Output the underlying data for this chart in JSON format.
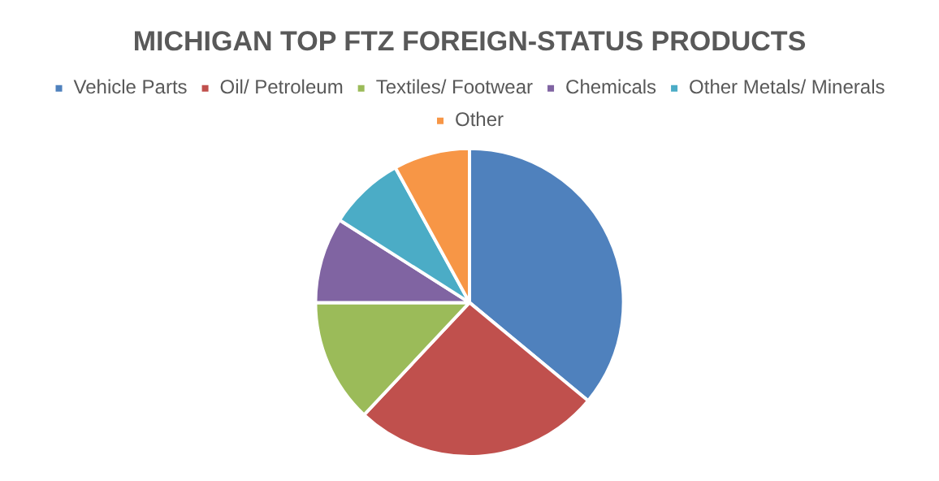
{
  "chart_data": {
    "type": "pie",
    "title": "MICHIGAN TOP FTZ FOREIGN-STATUS PRODUCTS",
    "categories": [
      "Vehicle Parts",
      "Oil/ Petroleum",
      "Textiles/ Footwear",
      "Chemicals",
      "Other Metals/ Minerals",
      "Other"
    ],
    "values": [
      36,
      26,
      13,
      9,
      8,
      8
    ],
    "colors": [
      "#4f81bd",
      "#c0504d",
      "#9bbb59",
      "#8064a2",
      "#4bacc6",
      "#f79646"
    ],
    "legend": "top"
  }
}
